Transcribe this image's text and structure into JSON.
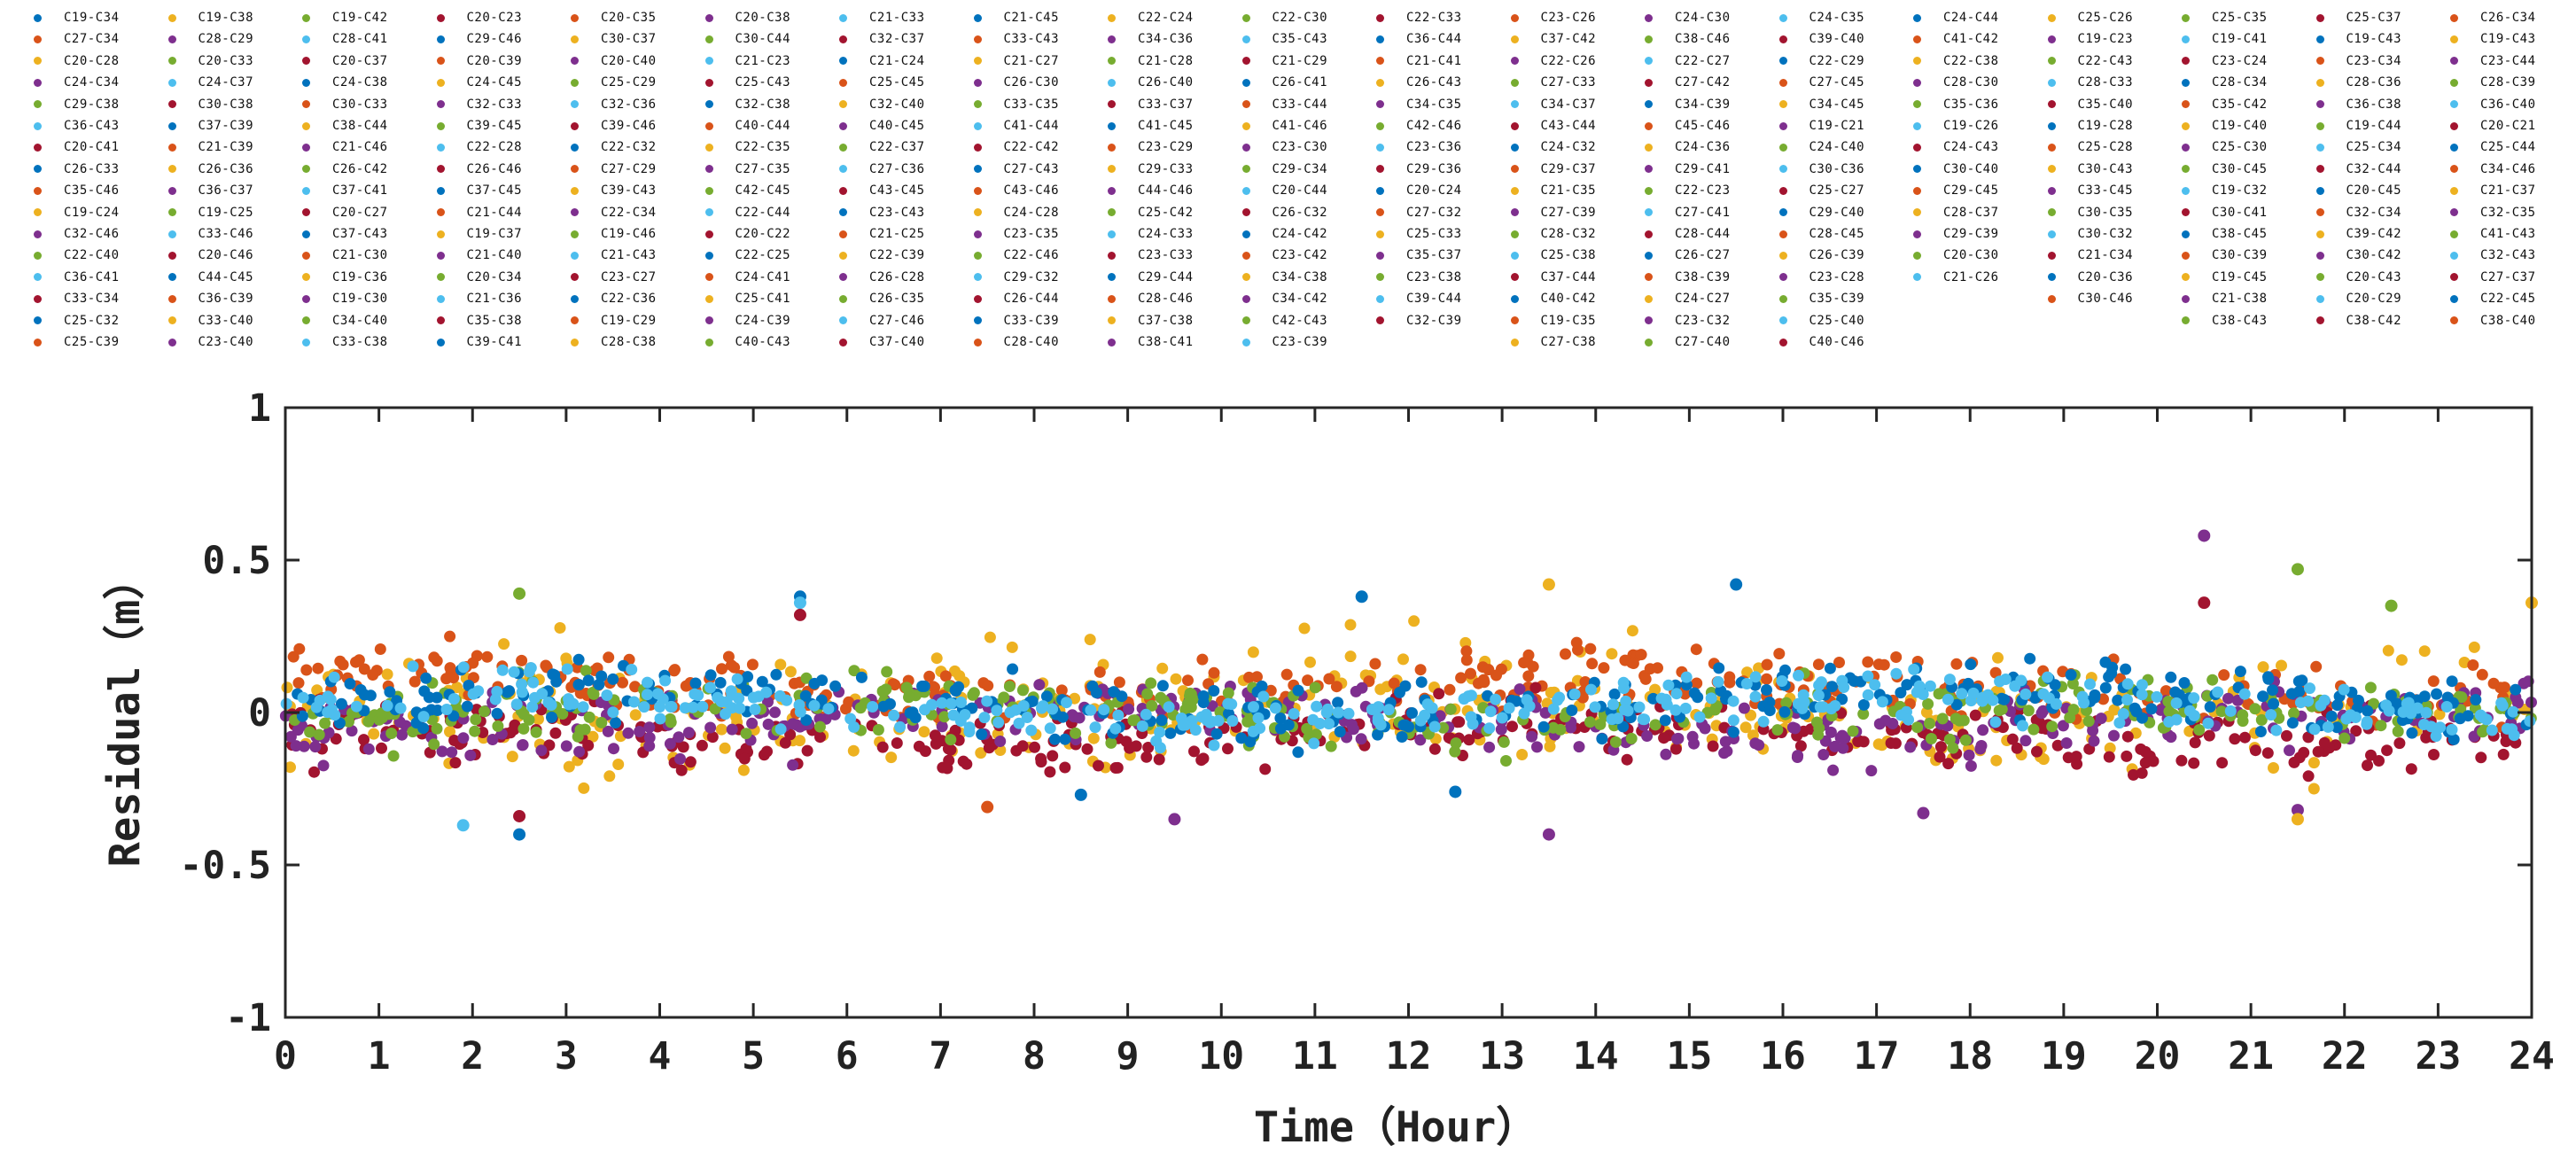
{
  "chart_data": {
    "type": "scatter",
    "title": "",
    "xlabel": "Time（Hour）",
    "ylabel": "Residual（m）",
    "xlim": [
      0,
      24
    ],
    "ylim": [
      -1,
      1
    ],
    "xticks": [
      "0",
      "1",
      "2",
      "3",
      "4",
      "5",
      "6",
      "7",
      "8",
      "9",
      "10",
      "11",
      "12",
      "13",
      "14",
      "15",
      "16",
      "17",
      "18",
      "19",
      "20",
      "21",
      "22",
      "23",
      "24"
    ],
    "yticks": [
      {
        "value": 1,
        "label": "1"
      },
      {
        "value": 0.5,
        "label": "0.5"
      },
      {
        "value": 0,
        "label": "0"
      },
      {
        "value": -0.5,
        "label": "-0.5"
      },
      {
        "value": -1,
        "label": "-1"
      }
    ],
    "typical_residual_band": [
      -0.25,
      0.3
    ],
    "palette": [
      "#0072BD",
      "#D95319",
      "#EDB120",
      "#7E2F8E",
      "#77AC30",
      "#4DBEEE",
      "#A2142F"
    ],
    "series_columns": [
      [
        "C19-C34",
        "C27-C34",
        "C20-C28",
        "C24-C34",
        "C29-C38",
        "C36-C43",
        "C20-C41",
        "C26-C33",
        "C35-C46",
        "C19-C24",
        "C32-C46",
        "C22-C40",
        "C36-C41",
        "C33-C34",
        "C25-C32",
        "C25-C39"
      ],
      [
        "C19-C38",
        "C28-C29",
        "C20-C33",
        "C24-C37",
        "C30-C38",
        "C37-C39",
        "C21-C39",
        "C26-C36",
        "C36-C37",
        "C19-C25",
        "C33-C46",
        "C20-C46",
        "C44-C45",
        "C36-C39",
        "C33-C40",
        "C23-C40"
      ],
      [
        "C19-C42",
        "C28-C41",
        "C20-C37",
        "C24-C38",
        "C30-C33",
        "C38-C44",
        "C21-C46",
        "C26-C42",
        "C37-C41",
        "C20-C27",
        "C37-C43",
        "C21-C30",
        "C19-C36",
        "C19-C30",
        "C34-C40",
        "C33-C38"
      ],
      [
        "C20-C23",
        "C29-C46",
        "C20-C39",
        "C24-C45",
        "C32-C33",
        "C39-C45",
        "C22-C28",
        "C26-C46",
        "C37-C45",
        "C21-C44",
        "C19-C37",
        "C21-C40",
        "C20-C34",
        "C21-C36",
        "C35-C38",
        "C39-C41"
      ],
      [
        "C20-C35",
        "C30-C37",
        "C20-C40",
        "C25-C29",
        "C32-C36",
        "C39-C46",
        "C22-C32",
        "C27-C29",
        "C39-C43",
        "C22-C34",
        "C19-C46",
        "C21-C43",
        "C23-C27",
        "C22-C36",
        "C19-C29",
        "C28-C38"
      ],
      [
        "C20-C38",
        "C30-C44",
        "C21-C23",
        "C25-C43",
        "C32-C38",
        "C40-C44",
        "C22-C35",
        "C27-C35",
        "C42-C45",
        "C22-C44",
        "C20-C22",
        "C22-C25",
        "C24-C41",
        "C25-C41",
        "C24-C39",
        "C40-C43"
      ],
      [
        "C21-C33",
        "C32-C37",
        "C21-C24",
        "C25-C45",
        "C32-C40",
        "C40-C45",
        "C22-C37",
        "C27-C36",
        "C43-C45",
        "C23-C43",
        "C21-C25",
        "C22-C39",
        "C26-C28",
        "C26-C35",
        "C27-C46",
        "C37-C40"
      ],
      [
        "C21-C45",
        "C33-C43",
        "C21-C27",
        "C26-C30",
        "C33-C35",
        "C41-C44",
        "C22-C42",
        "C27-C43",
        "C43-C46",
        "C24-C28",
        "C23-C35",
        "C22-C46",
        "C29-C32",
        "C26-C44",
        "C33-C39",
        "C28-C40"
      ],
      [
        "C22-C24",
        "C34-C36",
        "C21-C28",
        "C26-C40",
        "C33-C37",
        "C41-C45",
        "C23-C29",
        "C29-C33",
        "C44-C46",
        "C25-C42",
        "C24-C33",
        "C23-C33",
        "C29-C44",
        "C28-C46",
        "C37-C38",
        "C38-C41"
      ],
      [
        "C22-C30",
        "C35-C43",
        "C21-C29",
        "C26-C41",
        "C33-C44",
        "C41-C46",
        "C23-C30",
        "C29-C34",
        "C20-C44",
        "C26-C32",
        "C24-C42",
        "C23-C42",
        "C34-C38",
        "C34-C42",
        "C42-C43",
        "C23-C39"
      ],
      [
        "C22-C33",
        "C36-C44",
        "C21-C41",
        "C26-C43",
        "C34-C35",
        "C42-C46",
        "C23-C36",
        "C29-C36",
        "C20-C24",
        "C27-C32",
        "C25-C33",
        "C35-C37",
        "C23-C38",
        "C39-C44",
        "C32-C39"
      ],
      [
        "C23-C26",
        "C37-C42",
        "C22-C26",
        "C27-C33",
        "C34-C37",
        "C43-C44",
        "C24-C32",
        "C29-C37",
        "C21-C35",
        "C27-C39",
        "C28-C32",
        "C25-C38",
        "C37-C44",
        "C40-C42",
        "C19-C35",
        "C27-C38"
      ],
      [
        "C24-C30",
        "C38-C46",
        "C22-C27",
        "C27-C42",
        "C34-C39",
        "C45-C46",
        "C24-C36",
        "C29-C41",
        "C22-C23",
        "C27-C41",
        "C28-C44",
        "C26-C27",
        "C38-C39",
        "C24-C27",
        "C23-C32",
        "C27-C40"
      ],
      [
        "C24-C35",
        "C39-C40",
        "C22-C29",
        "C27-C45",
        "C34-C45",
        "C19-C21",
        "C24-C40",
        "C30-C36",
        "C25-C27",
        "C29-C40",
        "C28-C45",
        "C26-C39",
        "C23-C28",
        "C35-C39",
        "C25-C40",
        "C40-C46"
      ],
      [
        "C24-C44",
        "C41-C42",
        "C22-C38",
        "C28-C30",
        "C35-C36",
        "C19-C26",
        "C24-C43",
        "C30-C40",
        "C29-C45",
        "C28-C37",
        "C29-C39",
        "C20-C30",
        "C21-C26"
      ],
      [
        "C25-C26",
        "C19-C23",
        "C22-C43",
        "C28-C33",
        "C35-C40",
        "C19-C28",
        "C25-C28",
        "C30-C43",
        "C33-C45",
        "C30-C35",
        "C30-C32",
        "C21-C34",
        "C20-C36",
        "C30-C46"
      ],
      [
        "C25-C35",
        "C19-C41",
        "C23-C24",
        "C28-C34",
        "C35-C42",
        "C19-C40",
        "C25-C30",
        "C30-C45",
        "C19-C32",
        "C30-C41",
        "C38-C45",
        "C30-C39",
        "C19-C45",
        "C21-C38",
        "C38-C43"
      ],
      [
        "C25-C37",
        "C19-C43",
        "C23-C34",
        "C28-C36",
        "C36-C38",
        "C19-C44",
        "C25-C34",
        "C32-C44",
        "C20-C45",
        "C32-C34",
        "C39-C42",
        "C30-C42",
        "C20-C43",
        "C20-C29",
        "C38-C42"
      ],
      [
        "C26-C34",
        "C19-C43",
        "C23-C44",
        "C28-C39",
        "C36-C40",
        "C20-C21",
        "C25-C44",
        "C34-C46",
        "C21-C37",
        "C32-C35",
        "C41-C43",
        "C32-C43",
        "C27-C37",
        "C22-C45",
        "C38-C40"
      ]
    ],
    "notable_outliers": [
      {
        "x": 2.5,
        "y": 0.39,
        "c": 4
      },
      {
        "x": 2.5,
        "y": -0.34,
        "c": 6
      },
      {
        "x": 2.5,
        "y": -0.4,
        "c": 0
      },
      {
        "x": 1.9,
        "y": -0.37,
        "c": 5
      },
      {
        "x": 5.5,
        "y": 0.38,
        "c": 0
      },
      {
        "x": 5.5,
        "y": 0.36,
        "c": 5
      },
      {
        "x": 5.5,
        "y": 0.32,
        "c": 6
      },
      {
        "x": 7.5,
        "y": -0.31,
        "c": 1
      },
      {
        "x": 8.5,
        "y": -0.27,
        "c": 0
      },
      {
        "x": 9.5,
        "y": -0.35,
        "c": 3
      },
      {
        "x": 11.5,
        "y": 0.38,
        "c": 0
      },
      {
        "x": 12.5,
        "y": -0.26,
        "c": 0
      },
      {
        "x": 13.5,
        "y": 0.42,
        "c": 2
      },
      {
        "x": 13.5,
        "y": -0.4,
        "c": 3
      },
      {
        "x": 15.5,
        "y": 0.42,
        "c": 0
      },
      {
        "x": 17.5,
        "y": -0.33,
        "c": 3
      },
      {
        "x": 20.5,
        "y": 0.58,
        "c": 3
      },
      {
        "x": 20.5,
        "y": 0.36,
        "c": 6
      },
      {
        "x": 21.5,
        "y": 0.47,
        "c": 4
      },
      {
        "x": 21.5,
        "y": -0.32,
        "c": 3
      },
      {
        "x": 21.5,
        "y": -0.35,
        "c": 2
      },
      {
        "x": 22.5,
        "y": 0.35,
        "c": 4
      },
      {
        "x": 24,
        "y": 0.36,
        "c": 2
      }
    ]
  }
}
